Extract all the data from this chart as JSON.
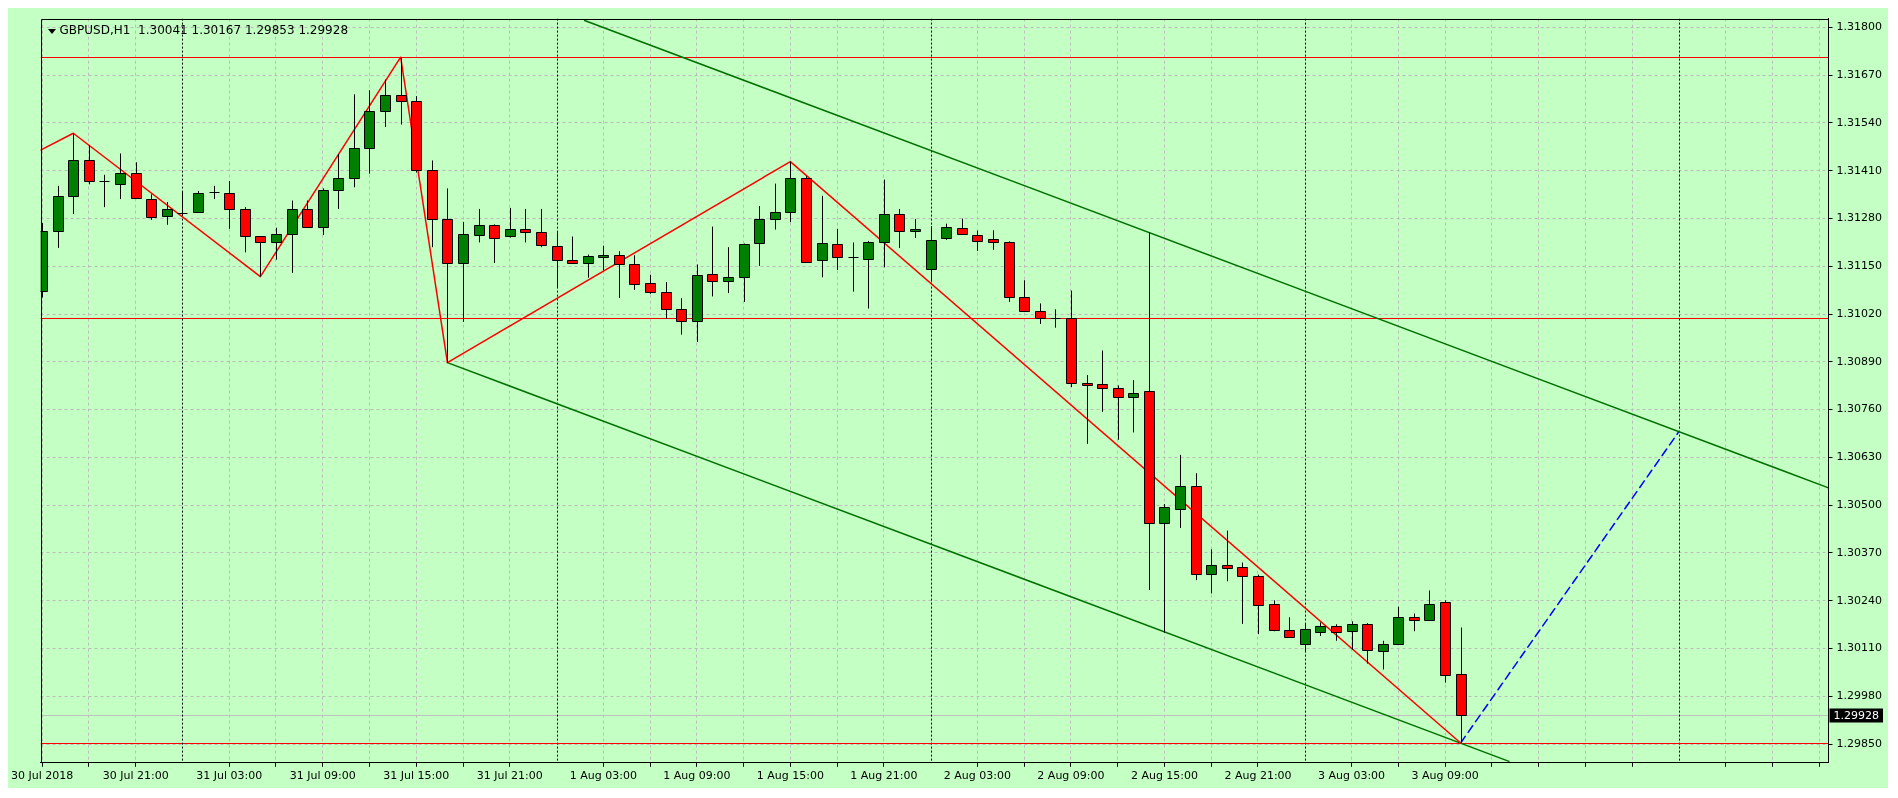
{
  "chart_data": {
    "type": "candlestick",
    "title": "GBPUSD,H1  1.30041 1.30167 1.29853 1.29928",
    "x": [
      "2018-07-30T15:00",
      "2018-07-30T16:00",
      "2018-07-30T17:00",
      "2018-07-30T18:00",
      "2018-07-30T19:00",
      "2018-07-30T20:00",
      "2018-07-30T21:00",
      "2018-07-30T22:00",
      "2018-07-30T23:00",
      "2018-07-31T00:00",
      "2018-07-31T01:00",
      "2018-07-31T02:00",
      "2018-07-31T03:00",
      "2018-07-31T04:00",
      "2018-07-31T05:00",
      "2018-07-31T06:00",
      "2018-07-31T07:00",
      "2018-07-31T08:00",
      "2018-07-31T09:00",
      "2018-07-31T10:00",
      "2018-07-31T11:00",
      "2018-07-31T12:00",
      "2018-07-31T13:00",
      "2018-07-31T14:00",
      "2018-07-31T15:00",
      "2018-07-31T16:00",
      "2018-07-31T17:00",
      "2018-07-31T18:00",
      "2018-07-31T19:00",
      "2018-07-31T20:00",
      "2018-07-31T21:00",
      "2018-07-31T22:00",
      "2018-07-31T23:00",
      "2018-08-01T00:00",
      "2018-08-01T01:00",
      "2018-08-01T02:00",
      "2018-08-01T03:00",
      "2018-08-01T04:00",
      "2018-08-01T05:00",
      "2018-08-01T06:00",
      "2018-08-01T07:00",
      "2018-08-01T08:00",
      "2018-08-01T09:00",
      "2018-08-01T10:00",
      "2018-08-01T11:00",
      "2018-08-01T12:00",
      "2018-08-01T13:00",
      "2018-08-01T14:00",
      "2018-08-01T15:00",
      "2018-08-01T16:00",
      "2018-08-01T17:00",
      "2018-08-01T18:00",
      "2018-08-01T19:00",
      "2018-08-01T20:00",
      "2018-08-01T21:00",
      "2018-08-01T22:00",
      "2018-08-01T23:00",
      "2018-08-02T00:00",
      "2018-08-02T01:00",
      "2018-08-02T02:00",
      "2018-08-02T03:00",
      "2018-08-02T04:00",
      "2018-08-02T05:00",
      "2018-08-02T06:00",
      "2018-08-02T07:00",
      "2018-08-02T08:00",
      "2018-08-02T09:00",
      "2018-08-02T10:00",
      "2018-08-02T11:00",
      "2018-08-02T12:00",
      "2018-08-02T13:00",
      "2018-08-02T14:00",
      "2018-08-02T15:00",
      "2018-08-02T16:00",
      "2018-08-02T17:00",
      "2018-08-02T18:00",
      "2018-08-02T19:00",
      "2018-08-02T20:00",
      "2018-08-02T21:00",
      "2018-08-02T22:00",
      "2018-08-02T23:00",
      "2018-08-03T00:00",
      "2018-08-03T01:00",
      "2018-08-03T02:00",
      "2018-08-03T03:00",
      "2018-08-03T04:00",
      "2018-08-03T05:00",
      "2018-08-03T06:00",
      "2018-08-03T07:00",
      "2018-08-03T08:00",
      "2018-08-03T09:00",
      "2018-08-03T10:00"
    ],
    "ohlc": [
      [
        1.31084,
        1.31268,
        1.31065,
        1.31247
      ],
      [
        1.31246,
        1.31369,
        1.312,
        1.31341
      ],
      [
        1.31341,
        1.31512,
        1.31292,
        1.31439
      ],
      [
        1.31439,
        1.31479,
        1.31373,
        1.31383
      ],
      [
        1.31381,
        1.31399,
        1.31311,
        1.31381
      ],
      [
        1.31374,
        1.31457,
        1.31333,
        1.31403
      ],
      [
        1.31403,
        1.31433,
        1.31333,
        1.31335
      ],
      [
        1.31334,
        1.31346,
        1.31276,
        1.31284
      ],
      [
        1.31286,
        1.31325,
        1.31263,
        1.31305
      ],
      [
        1.31294,
        1.31353,
        1.31287,
        1.31294
      ],
      [
        1.31299,
        1.31355,
        1.31298,
        1.31349
      ],
      [
        1.31351,
        1.31369,
        1.31333,
        1.31351
      ],
      [
        1.31349,
        1.31382,
        1.31252,
        1.31306
      ],
      [
        1.31307,
        1.31311,
        1.31188,
        1.31232
      ],
      [
        1.31232,
        1.31232,
        1.31122,
        1.31216
      ],
      [
        1.31216,
        1.31255,
        1.31168,
        1.31238
      ],
      [
        1.31238,
        1.31329,
        1.31132,
        1.31306
      ],
      [
        1.31306,
        1.31329,
        1.31255,
        1.31258
      ],
      [
        1.31258,
        1.31362,
        1.31235,
        1.31357
      ],
      [
        1.31357,
        1.31455,
        1.31306,
        1.31391
      ],
      [
        1.31389,
        1.31618,
        1.31365,
        1.31471
      ],
      [
        1.31471,
        1.31629,
        1.31402,
        1.31572
      ],
      [
        1.31572,
        1.31658,
        1.31529,
        1.31616
      ],
      [
        1.31616,
        1.31719,
        1.31536,
        1.31601
      ],
      [
        1.316,
        1.31613,
        1.31405,
        1.31411
      ],
      [
        1.31411,
        1.31438,
        1.31202,
        1.31278
      ],
      [
        1.31278,
        1.31362,
        1.30888,
        1.31158
      ],
      [
        1.31159,
        1.31271,
        1.30999,
        1.31238
      ],
      [
        1.31235,
        1.31306,
        1.31215,
        1.31262
      ],
      [
        1.31262,
        1.31264,
        1.31159,
        1.31227
      ],
      [
        1.31232,
        1.31309,
        1.31228,
        1.31251
      ],
      [
        1.31251,
        1.31306,
        1.31215,
        1.31243
      ],
      [
        1.31243,
        1.31306,
        1.31202,
        1.31208
      ],
      [
        1.31204,
        1.31242,
        1.31092,
        1.31167
      ],
      [
        1.31166,
        1.31231,
        1.31158,
        1.3116
      ],
      [
        1.31159,
        1.31182,
        1.31119,
        1.31178
      ],
      [
        1.31175,
        1.31206,
        1.31139,
        1.31182
      ],
      [
        1.31182,
        1.31191,
        1.31064,
        1.31155
      ],
      [
        1.31156,
        1.3118,
        1.31086,
        1.31102
      ],
      [
        1.31104,
        1.31127,
        1.31075,
        1.31081
      ],
      [
        1.3108,
        1.31107,
        1.31008,
        1.31033
      ],
      [
        1.31033,
        1.31063,
        1.30964,
        1.31001
      ],
      [
        1.31001,
        1.31155,
        1.30944,
        1.31127
      ],
      [
        1.31128,
        1.31258,
        1.31068,
        1.3111
      ],
      [
        1.3111,
        1.31202,
        1.31077,
        1.3112
      ],
      [
        1.3112,
        1.31212,
        1.31053,
        1.31212
      ],
      [
        1.31214,
        1.31314,
        1.31151,
        1.3128
      ],
      [
        1.3128,
        1.31375,
        1.3125,
        1.31299
      ],
      [
        1.31299,
        1.31435,
        1.3127,
        1.31391
      ],
      [
        1.31391,
        1.31395,
        1.31159,
        1.31162
      ],
      [
        1.31166,
        1.31342,
        1.3112,
        1.31214
      ],
      [
        1.31211,
        1.31252,
        1.3114,
        1.31174
      ],
      [
        1.31174,
        1.31215,
        1.31081,
        1.31174
      ],
      [
        1.31171,
        1.31219,
        1.31035,
        1.31216
      ],
      [
        1.31216,
        1.31386,
        1.31147,
        1.31292
      ],
      [
        1.31292,
        1.31306,
        1.312,
        1.31247
      ],
      [
        1.31246,
        1.31279,
        1.31227,
        1.31252
      ],
      [
        1.31142,
        1.31259,
        1.31108,
        1.31222
      ],
      [
        1.31227,
        1.31266,
        1.31222,
        1.31258
      ],
      [
        1.31255,
        1.3128,
        1.31238,
        1.31239
      ],
      [
        1.31235,
        1.31247,
        1.31192,
        1.3122
      ],
      [
        1.31223,
        1.31248,
        1.31195,
        1.31215
      ],
      [
        1.31215,
        1.31218,
        1.31053,
        1.31067
      ],
      [
        1.31067,
        1.31112,
        1.31028,
        1.31028
      ],
      [
        1.31028,
        1.31049,
        1.30993,
        1.31009
      ],
      [
        1.31009,
        1.31033,
        1.30983,
        1.31009
      ],
      [
        1.31009,
        1.31084,
        1.30821,
        1.30832
      ],
      [
        1.30832,
        1.30854,
        1.30667,
        1.30826
      ],
      [
        1.30829,
        1.30921,
        1.30754,
        1.30818
      ],
      [
        1.30818,
        1.30826,
        1.30678,
        1.30794
      ],
      [
        1.30794,
        1.3084,
        1.30698,
        1.30805
      ],
      [
        1.3081,
        1.31242,
        1.30269,
        1.30451
      ],
      [
        1.30451,
        1.30503,
        1.30153,
        1.30494
      ],
      [
        1.3049,
        1.30637,
        1.30438,
        1.30551
      ],
      [
        1.30551,
        1.30587,
        1.30296,
        1.30313
      ],
      [
        1.30313,
        1.3038,
        1.3026,
        1.30338
      ],
      [
        1.30338,
        1.30431,
        1.30293,
        1.3033
      ],
      [
        1.30331,
        1.30344,
        1.30177,
        1.30307
      ],
      [
        1.30307,
        1.30311,
        1.30149,
        1.30228
      ],
      [
        1.30231,
        1.30241,
        1.30157,
        1.3016
      ],
      [
        1.3016,
        1.30195,
        1.30139,
        1.30141
      ],
      [
        1.30122,
        1.30179,
        1.301,
        1.30163
      ],
      [
        1.30155,
        1.30181,
        1.30144,
        1.30172
      ],
      [
        1.30172,
        1.30176,
        1.30131,
        1.30155
      ],
      [
        1.30157,
        1.30184,
        1.30107,
        1.30176
      ],
      [
        1.30176,
        1.30179,
        1.30069,
        1.30105
      ],
      [
        1.30104,
        1.30131,
        1.30053,
        1.30122
      ],
      [
        1.30122,
        1.30224,
        1.30122,
        1.30195
      ],
      [
        1.30195,
        1.30205,
        1.30157,
        1.30188
      ],
      [
        1.30188,
        1.30268,
        1.30185,
        1.30232
      ],
      [
        1.30236,
        1.30241,
        1.30017,
        1.30038
      ],
      [
        1.30041,
        1.30167,
        1.29853,
        1.29928
      ]
    ],
    "colors": [
      "#008000",
      "#008000",
      "#008000",
      "#ff0000",
      "#000000",
      "#008000",
      "#ff0000",
      "#ff0000",
      "#008000",
      "#000000",
      "#008000",
      "#000000",
      "#ff0000",
      "#ff0000",
      "#ff0000",
      "#008000",
      "#008000",
      "#ff0000",
      "#008000",
      "#008000",
      "#008000",
      "#008000",
      "#008000",
      "#ff0000",
      "#ff0000",
      "#ff0000",
      "#ff0000",
      "#008000",
      "#008000",
      "#ff0000",
      "#008000",
      "#ff0000",
      "#ff0000",
      "#ff0000",
      "#ff0000",
      "#008000",
      "#008000",
      "#ff0000",
      "#ff0000",
      "#ff0000",
      "#ff0000",
      "#ff0000",
      "#008000",
      "#ff0000",
      "#008000",
      "#008000",
      "#008000",
      "#008000",
      "#008000",
      "#ff0000",
      "#008000",
      "#ff0000",
      "#000000",
      "#008000",
      "#008000",
      "#ff0000",
      "#008000",
      "#008000",
      "#008000",
      "#ff0000",
      "#ff0000",
      "#ff0000",
      "#ff0000",
      "#ff0000",
      "#ff0000",
      "#000000",
      "#ff0000",
      "#ff0000",
      "#ff0000",
      "#ff0000",
      "#008000",
      "#ff0000",
      "#008000",
      "#008000",
      "#ff0000",
      "#008000",
      "#ff0000",
      "#ff0000",
      "#ff0000",
      "#ff0000",
      "#ff0000",
      "#008000",
      "#008000",
      "#ff0000",
      "#008000",
      "#ff0000",
      "#008000",
      "#008000",
      "#ff0000",
      "#008000",
      "#ff0000",
      "#ff0000"
    ],
    "series": [
      {
        "type": "line",
        "x": [
          "2018-07-30T14:54",
          "2018-07-30T17:00",
          "2018-07-31T05:00",
          "2018-07-31T14:00",
          "2018-07-31T17:00",
          "2018-08-01T15:00",
          "2018-08-03T10:00"
        ],
        "values": [
          1.31466,
          1.31512,
          1.31122,
          1.31719,
          1.30888,
          1.31435,
          1.29853
        ],
        "color": "#ff0000"
      },
      {
        "type": "line",
        "x": [
          "2018-08-01T01:48",
          "2018-08-04T09:36"
        ],
        "values": [
          1.31819,
          1.30547
        ],
        "color": "#007000"
      },
      {
        "type": "line",
        "x": [
          "2018-07-31T17:00",
          "2018-08-03T13:06"
        ],
        "values": [
          1.30888,
          1.29803
        ],
        "color": "#007000"
      },
      {
        "type": "line",
        "x": [
          "2018-08-03T10:00",
          "2018-08-04T00:00"
        ],
        "values": [
          1.29853,
          1.307
        ],
        "color": "#0000ff",
        "line_style": "dashed"
      }
    ],
    "xlim": [
      "2018-07-30T14:54",
      "2018-08-04T09:36"
    ],
    "ylim": [
      1.29799,
      1.31824
    ],
    "xticks": [
      {
        "value": "2018-07-30T15:00",
        "label": "30 Jul 2018"
      },
      {
        "value": "2018-07-30T18:00",
        "label": null
      },
      {
        "value": "2018-07-30T21:00",
        "label": "30 Jul 21:00"
      },
      {
        "value": "2018-07-31T03:00",
        "label": "31 Jul 03:00"
      },
      {
        "value": "2018-07-31T06:00",
        "label": null
      },
      {
        "value": "2018-07-31T09:00",
        "label": "31 Jul 09:00"
      },
      {
        "value": "2018-07-31T12:00",
        "label": null
      },
      {
        "value": "2018-07-31T15:00",
        "label": "31 Jul 15:00"
      },
      {
        "value": "2018-07-31T18:00",
        "label": null
      },
      {
        "value": "2018-07-31T21:00",
        "label": "31 Jul 21:00"
      },
      {
        "value": "2018-08-01T03:00",
        "label": "1 Aug 03:00"
      },
      {
        "value": "2018-08-01T06:00",
        "label": null
      },
      {
        "value": "2018-08-01T09:00",
        "label": "1 Aug 09:00"
      },
      {
        "value": "2018-08-01T12:00",
        "label": null
      },
      {
        "value": "2018-08-01T15:00",
        "label": "1 Aug 15:00"
      },
      {
        "value": "2018-08-01T18:00",
        "label": null
      },
      {
        "value": "2018-08-01T21:00",
        "label": "1 Aug 21:00"
      },
      {
        "value": "2018-08-02T03:00",
        "label": "2 Aug 03:00"
      },
      {
        "value": "2018-08-02T06:00",
        "label": null
      },
      {
        "value": "2018-08-02T09:00",
        "label": "2 Aug 09:00"
      },
      {
        "value": "2018-08-02T12:00",
        "label": null
      },
      {
        "value": "2018-08-02T15:00",
        "label": "2 Aug 15:00"
      },
      {
        "value": "2018-08-02T18:00",
        "label": null
      },
      {
        "value": "2018-08-02T21:00",
        "label": "2 Aug 21:00"
      },
      {
        "value": "2018-08-03T03:00",
        "label": "3 Aug 03:00"
      },
      {
        "value": "2018-08-03T06:00",
        "label": null
      },
      {
        "value": "2018-08-03T09:00",
        "label": "3 Aug 09:00"
      },
      {
        "value": "2018-08-03T12:00",
        "label": null
      },
      {
        "value": "2018-08-03T15:00",
        "label": null
      },
      {
        "value": "2018-08-03T18:00",
        "label": null
      },
      {
        "value": "2018-08-03T21:00",
        "label": null
      },
      {
        "value": "2018-08-04T03:00",
        "label": null
      },
      {
        "value": "2018-08-04T06:00",
        "label": null
      },
      {
        "value": "2018-08-04T09:00",
        "label": null
      }
    ],
    "yticks": [
      {
        "value": 1.318,
        "label": "1.31800"
      },
      {
        "value": 1.3167,
        "label": "1.31670"
      },
      {
        "value": 1.3154,
        "label": "1.31540"
      },
      {
        "value": 1.3141,
        "label": "1.31410"
      },
      {
        "value": 1.3128,
        "label": "1.31280"
      },
      {
        "value": 1.3115,
        "label": "1.31150"
      },
      {
        "value": 1.3102,
        "label": "1.31020"
      },
      {
        "value": 1.3089,
        "label": "1.30890"
      },
      {
        "value": 1.3076,
        "label": "1.30760"
      },
      {
        "value": 1.3063,
        "label": "1.30630"
      },
      {
        "value": 1.305,
        "label": "1.30500"
      },
      {
        "value": 1.3037,
        "label": "1.30370"
      },
      {
        "value": 1.3024,
        "label": "1.30240"
      },
      {
        "value": 1.3011,
        "label": "1.30110"
      },
      {
        "value": 1.2998,
        "label": "1.29980"
      },
      {
        "value": 1.2985,
        "label": "1.29850"
      }
    ],
    "grid": true,
    "ref_lines": [
      {
        "axis": "y",
        "value": 1.31719,
        "color": "#ff0000"
      },
      {
        "axis": "y",
        "value": 1.31008,
        "color": "#ff0000"
      },
      {
        "axis": "y",
        "value": 1.29853,
        "color": "#ff0000"
      },
      {
        "axis": "y",
        "value": 1.29928,
        "label": "1.29928",
        "color": "#c0c0c0"
      },
      {
        "axis": "x",
        "value": "2018-07-31T00:00",
        "color": "#000000",
        "line_style": "dotted"
      },
      {
        "axis": "x",
        "value": "2018-08-01T00:00",
        "color": "#000000",
        "line_style": "dotted"
      },
      {
        "axis": "x",
        "value": "2018-08-02T00:00",
        "color": "#000000",
        "line_style": "dotted"
      },
      {
        "axis": "x",
        "value": "2018-08-03T00:00",
        "color": "#000000",
        "line_style": "dotted"
      },
      {
        "axis": "x",
        "value": "2018-08-04T00:00",
        "color": "#000000",
        "line_style": "dotted"
      }
    ]
  }
}
